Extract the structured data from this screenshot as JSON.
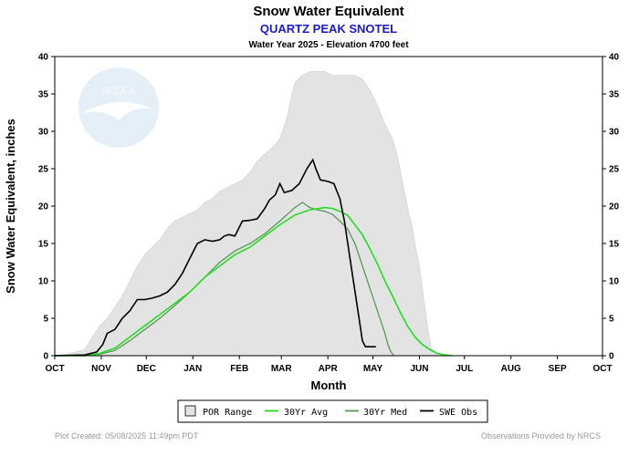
{
  "header": {
    "title": "Snow Water Equivalent",
    "station": "QUARTZ PEAK SNOTEL",
    "subtitle": "Water Year 2025 -  Elevation 4700 feet"
  },
  "logo": {
    "text": "NOAA"
  },
  "footer": {
    "left": "Plot Created: 05/08/2025 11:49pm PDT",
    "right": "Observations Provided by NRCS"
  },
  "colors": {
    "por_fill": "#e3e3e3",
    "por_edge": "#d0d0d0",
    "avg": "#22dd22",
    "med": "#559955",
    "obs": "#000000",
    "noaa": "#cfe3f3"
  },
  "chart_data": {
    "type": "area",
    "title": "Snow Water Equivalent",
    "xlabel": "Month",
    "ylabel": "Snow Water Equivalent, inches",
    "x_unit": "day of water year (Oct 1 = 0)",
    "ylim": [
      0,
      40
    ],
    "y_ticks": [
      0,
      5,
      10,
      15,
      20,
      25,
      30,
      35,
      40
    ],
    "x_ticks": [
      {
        "day": 0,
        "label": "OCT"
      },
      {
        "day": 31,
        "label": "NOV"
      },
      {
        "day": 61,
        "label": "DEC"
      },
      {
        "day": 92,
        "label": "JAN"
      },
      {
        "day": 123,
        "label": "FEB"
      },
      {
        "day": 151,
        "label": "MAR"
      },
      {
        "day": 182,
        "label": "APR"
      },
      {
        "day": 212,
        "label": "MAY"
      },
      {
        "day": 243,
        "label": "JUN"
      },
      {
        "day": 273,
        "label": "JUL"
      },
      {
        "day": 304,
        "label": "AUG"
      },
      {
        "day": 335,
        "label": "SEP"
      },
      {
        "day": 365,
        "label": "OCT"
      }
    ],
    "legend": [
      {
        "key": "por",
        "label": "POR Range"
      },
      {
        "key": "avg",
        "label": "30Yr Avg"
      },
      {
        "key": "med",
        "label": "30Yr Med"
      },
      {
        "key": "obs",
        "label": "SWE Obs"
      }
    ],
    "series": [
      {
        "name": "POR Max",
        "key": "por_max",
        "points": [
          [
            0,
            0
          ],
          [
            10,
            0.3
          ],
          [
            20,
            0.8
          ],
          [
            25,
            2.5
          ],
          [
            30,
            4
          ],
          [
            35,
            5
          ],
          [
            40,
            6.5
          ],
          [
            45,
            8
          ],
          [
            50,
            10
          ],
          [
            55,
            12
          ],
          [
            60,
            13.5
          ],
          [
            65,
            14.5
          ],
          [
            70,
            15.5
          ],
          [
            75,
            17
          ],
          [
            80,
            18
          ],
          [
            85,
            18.5
          ],
          [
            90,
            19
          ],
          [
            95,
            19.5
          ],
          [
            100,
            20.5
          ],
          [
            105,
            21
          ],
          [
            110,
            22
          ],
          [
            115,
            22.5
          ],
          [
            120,
            23
          ],
          [
            125,
            23.5
          ],
          [
            130,
            24.5
          ],
          [
            135,
            26
          ],
          [
            140,
            27
          ],
          [
            145,
            27.8
          ],
          [
            150,
            29
          ],
          [
            155,
            32
          ],
          [
            158,
            35
          ],
          [
            160,
            36.5
          ],
          [
            165,
            37.5
          ],
          [
            170,
            38
          ],
          [
            175,
            38
          ],
          [
            180,
            38
          ],
          [
            185,
            37.5
          ],
          [
            190,
            37.5
          ],
          [
            195,
            37.5
          ],
          [
            200,
            37.5
          ],
          [
            205,
            37
          ],
          [
            210,
            35.5
          ],
          [
            215,
            33.5
          ],
          [
            220,
            31
          ],
          [
            225,
            29
          ],
          [
            228,
            27
          ],
          [
            232,
            23
          ],
          [
            236,
            19
          ],
          [
            238,
            17.5
          ],
          [
            240,
            15
          ],
          [
            243,
            12
          ],
          [
            245,
            9
          ],
          [
            247,
            6
          ],
          [
            249,
            3
          ],
          [
            251,
            1
          ],
          [
            255,
            0.2
          ],
          [
            260,
            0
          ]
        ]
      },
      {
        "name": "POR Min",
        "key": "por_min",
        "points": [
          [
            0,
            0
          ],
          [
            150,
            0
          ],
          [
            230,
            0
          ],
          [
            260,
            0
          ]
        ]
      },
      {
        "name": "30Yr Avg",
        "key": "avg",
        "points": [
          [
            0,
            0
          ],
          [
            20,
            0
          ],
          [
            30,
            0.3
          ],
          [
            40,
            1
          ],
          [
            50,
            2.5
          ],
          [
            60,
            4
          ],
          [
            70,
            5.5
          ],
          [
            80,
            7
          ],
          [
            90,
            8.5
          ],
          [
            100,
            10.5
          ],
          [
            110,
            12
          ],
          [
            120,
            13.5
          ],
          [
            130,
            14.5
          ],
          [
            140,
            16
          ],
          [
            150,
            17.5
          ],
          [
            160,
            18.8
          ],
          [
            170,
            19.5
          ],
          [
            180,
            19.8
          ],
          [
            185,
            19.7
          ],
          [
            190,
            19.3
          ],
          [
            195,
            18.8
          ],
          [
            200,
            17.5
          ],
          [
            205,
            16.2
          ],
          [
            210,
            14.3
          ],
          [
            215,
            12.3
          ],
          [
            220,
            10
          ],
          [
            225,
            8
          ],
          [
            230,
            5.9
          ],
          [
            235,
            4
          ],
          [
            240,
            2.5
          ],
          [
            245,
            1.5
          ],
          [
            250,
            0.8
          ],
          [
            255,
            0.3
          ],
          [
            260,
            0.1
          ],
          [
            265,
            0
          ]
        ]
      },
      {
        "name": "30Yr Med",
        "key": "med",
        "points": [
          [
            0,
            0
          ],
          [
            20,
            0
          ],
          [
            30,
            0.2
          ],
          [
            40,
            0.7
          ],
          [
            50,
            2
          ],
          [
            60,
            3.5
          ],
          [
            70,
            5
          ],
          [
            80,
            6.7
          ],
          [
            90,
            8.5
          ],
          [
            100,
            10.5
          ],
          [
            110,
            12.5
          ],
          [
            120,
            14
          ],
          [
            130,
            15
          ],
          [
            140,
            16.3
          ],
          [
            150,
            18
          ],
          [
            160,
            19.8
          ],
          [
            165,
            20.5
          ],
          [
            170,
            19.8
          ],
          [
            175,
            19.5
          ],
          [
            180,
            19.3
          ],
          [
            185,
            18.9
          ],
          [
            190,
            18
          ],
          [
            195,
            17
          ],
          [
            200,
            15
          ],
          [
            205,
            12
          ],
          [
            210,
            9
          ],
          [
            215,
            6
          ],
          [
            220,
            3
          ],
          [
            222,
            1.5
          ],
          [
            224,
            0.5
          ],
          [
            226,
            0
          ]
        ]
      },
      {
        "name": "SWE Obs",
        "key": "obs",
        "points": [
          [
            0,
            0
          ],
          [
            20,
            0.1
          ],
          [
            28,
            0.5
          ],
          [
            32,
            1.5
          ],
          [
            35,
            3
          ],
          [
            40,
            3.5
          ],
          [
            45,
            5
          ],
          [
            50,
            6
          ],
          [
            55,
            7.5
          ],
          [
            60,
            7.5
          ],
          [
            65,
            7.7
          ],
          [
            70,
            8
          ],
          [
            75,
            8.5
          ],
          [
            80,
            9.5
          ],
          [
            85,
            11
          ],
          [
            90,
            13
          ],
          [
            95,
            15
          ],
          [
            100,
            15.5
          ],
          [
            105,
            15.3
          ],
          [
            110,
            15.5
          ],
          [
            113,
            16
          ],
          [
            116,
            16.2
          ],
          [
            120,
            16
          ],
          [
            125,
            18
          ],
          [
            130,
            18.1
          ],
          [
            135,
            18.3
          ],
          [
            140,
            19.7
          ],
          [
            143,
            20.8
          ],
          [
            147,
            21.5
          ],
          [
            150,
            23
          ],
          [
            153,
            21.8
          ],
          [
            158,
            22.1
          ],
          [
            163,
            23
          ],
          [
            168,
            25
          ],
          [
            172,
            26.2
          ],
          [
            174,
            25
          ],
          [
            177,
            23.5
          ],
          [
            182,
            23.3
          ],
          [
            186,
            23
          ],
          [
            190,
            21
          ],
          [
            193,
            18
          ],
          [
            196,
            14
          ],
          [
            199,
            10
          ],
          [
            202,
            6
          ],
          [
            205,
            2
          ],
          [
            207,
            1.2
          ],
          [
            214,
            1.2
          ]
        ]
      }
    ]
  }
}
